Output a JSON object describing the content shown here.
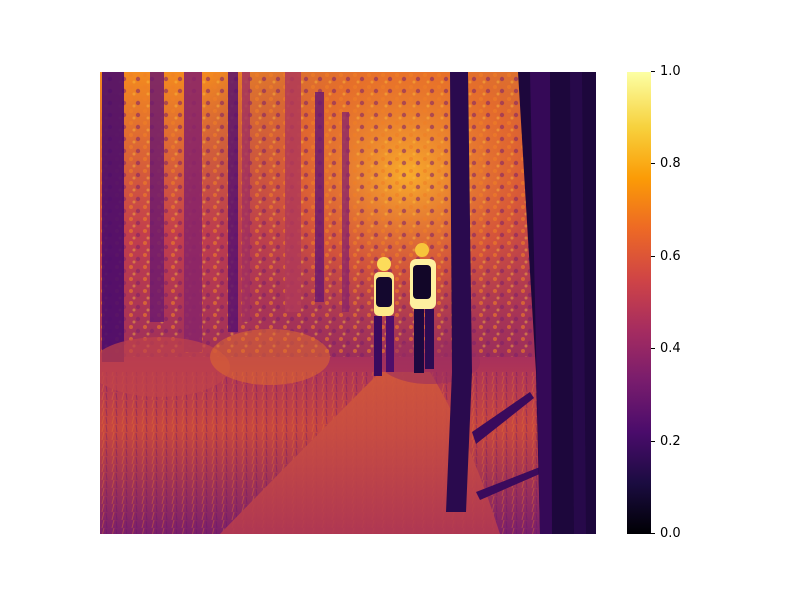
{
  "figure": {
    "image": {
      "subject": "people hiking on a forest trail",
      "colormap": "inferno"
    },
    "colorbar": {
      "colormap": "inferno",
      "range": [
        0.0,
        1.0
      ],
      "ticks": [
        {
          "value": 0.0,
          "label": "0.0"
        },
        {
          "value": 0.2,
          "label": "0.2"
        },
        {
          "value": 0.4,
          "label": "0.4"
        },
        {
          "value": 0.6,
          "label": "0.6"
        },
        {
          "value": 0.8,
          "label": "0.8"
        },
        {
          "value": 1.0,
          "label": "1.0"
        }
      ],
      "stops": [
        "#000004",
        "#1b0c41",
        "#4a0c6b",
        "#781c6d",
        "#a52c60",
        "#cf4446",
        "#ed6925",
        "#fb9b06",
        "#f7d13d",
        "#fcffa4"
      ]
    }
  }
}
